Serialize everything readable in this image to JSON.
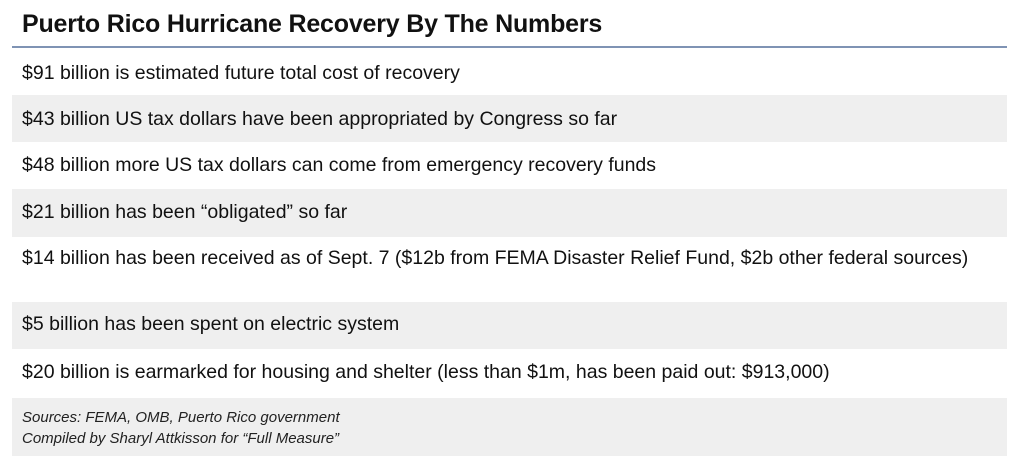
{
  "title": "Puerto Rico Hurricane Recovery By The Numbers",
  "rows": [
    "$91 billion is estimated future total cost of recovery",
    "$43 billion US tax dollars have been appropriated by Congress so far",
    "$48 billion more US tax dollars can come from emergency recovery funds",
    "$21 billion has been “obligated” so far",
    "$14 billion has been received as of Sept. 7 ($12b from FEMA Disaster Relief Fund, $2b other federal sources)",
    "$5 billion has been spent on electric system",
    "$20 billion is earmarked for housing and shelter (less than $1m, has been paid out: $913,000)"
  ],
  "sources": {
    "line1": "Sources: FEMA, OMB, Puerto Rico government",
    "line2": "Compiled by Sharyl Attkisson for “Full Measure”"
  },
  "colors": {
    "rule": "#7f93b4",
    "shade": "#efefef"
  }
}
